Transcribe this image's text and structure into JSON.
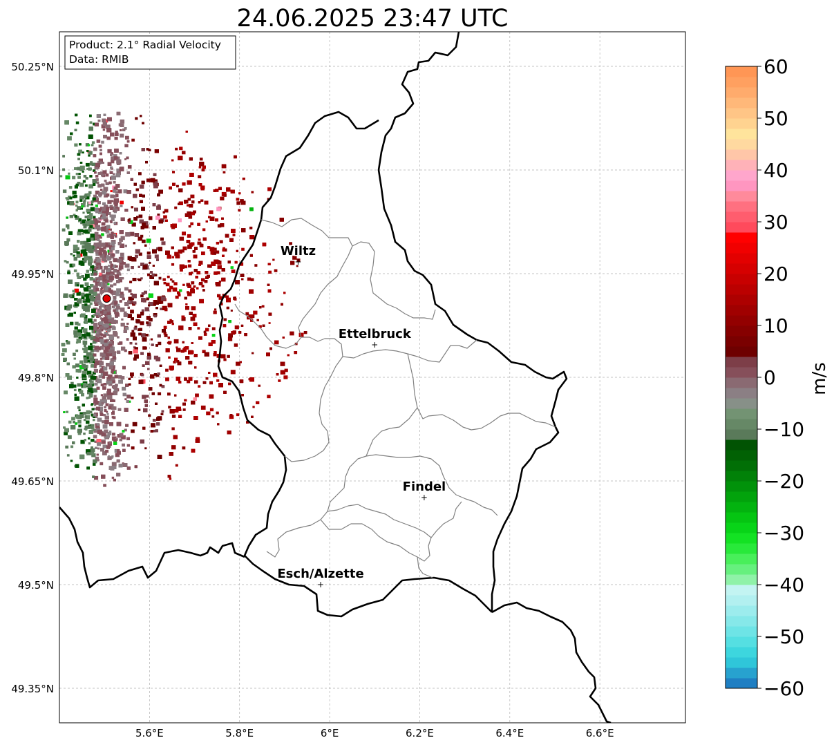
{
  "title": "24.06.2025 23:47 UTC",
  "info_box": {
    "product": "Product: 2.1° Radial Velocity",
    "data": "Data: RMIB"
  },
  "map": {
    "lat_ticks": [
      {
        "value": 50.25,
        "label": "50.25°N"
      },
      {
        "value": 50.1,
        "label": "50.1°N"
      },
      {
        "value": 49.95,
        "label": "49.95°N"
      },
      {
        "value": 49.8,
        "label": "49.8°N"
      },
      {
        "value": 49.65,
        "label": "49.65°N"
      },
      {
        "value": 49.5,
        "label": "49.5°N"
      },
      {
        "value": 49.35,
        "label": "49.35°N"
      }
    ],
    "lon_ticks": [
      {
        "value": 5.6,
        "label": "5.6°E"
      },
      {
        "value": 5.8,
        "label": "5.8°E"
      },
      {
        "value": 6.0,
        "label": "6°E"
      },
      {
        "value": 6.2,
        "label": "6.2°E"
      },
      {
        "value": 6.4,
        "label": "6.4°E"
      },
      {
        "value": 6.6,
        "label": "6.6°E"
      }
    ],
    "extent": {
      "lon": [
        5.4,
        6.79
      ],
      "lat": [
        49.3,
        50.3
      ]
    },
    "cities": [
      {
        "name": "Wiltz",
        "lon": 5.93,
        "lat": 49.967
      },
      {
        "name": "Ettelbruck",
        "lon": 6.1,
        "lat": 49.847
      },
      {
        "name": "Findel",
        "lon": 6.21,
        "lat": 49.626
      },
      {
        "name": "Esch/Alzette",
        "lon": 5.98,
        "lat": 49.5
      }
    ],
    "radar_site": {
      "lon": 5.505,
      "lat": 49.914
    }
  },
  "colorbar": {
    "label": "m/s",
    "min": -60,
    "max": 60,
    "ticks": [
      {
        "value": 60,
        "label": "60"
      },
      {
        "value": 50,
        "label": "50"
      },
      {
        "value": 40,
        "label": "40"
      },
      {
        "value": 30,
        "label": "30"
      },
      {
        "value": 20,
        "label": "20"
      },
      {
        "value": 10,
        "label": "10"
      },
      {
        "value": 0,
        "label": "0"
      },
      {
        "value": -10,
        "label": "−10"
      },
      {
        "value": -20,
        "label": "−20"
      },
      {
        "value": -30,
        "label": "−30"
      },
      {
        "value": -40,
        "label": "−40"
      },
      {
        "value": -50,
        "label": "−50"
      },
      {
        "value": -60,
        "label": "−60"
      }
    ],
    "colors": [
      "#1f7fc3",
      "#27a2cf",
      "#2fc6d9",
      "#3dd6de",
      "#55dfe2",
      "#6ee4e6",
      "#86e8e9",
      "#9ceced",
      "#b2f0f0",
      "#c3f4f2",
      "#8ff2a8",
      "#66f07e",
      "#48ef5a",
      "#28e93a",
      "#13e223",
      "#08d418",
      "#05c512",
      "#03b30f",
      "#02a30c",
      "#01920a",
      "#018108",
      "#016f06",
      "#016104",
      "#015303",
      "#5a7a5a",
      "#668866",
      "#739373",
      "#879088",
      "#8b7f84",
      "#8a6a72",
      "#864f5a",
      "#7d3e48",
      "#6e0000",
      "#7a0000",
      "#860000",
      "#930000",
      "#a00000",
      "#ad0000",
      "#bb0000",
      "#c80000",
      "#d60000",
      "#e30000",
      "#f10000",
      "#ff0000",
      "#ff4a5c",
      "#ff5d6e",
      "#ff7080",
      "#ff8a9b",
      "#ff96c0",
      "#ffa6cc",
      "#ffb2b8",
      "#ffc6a8",
      "#ffd9a0",
      "#ffe49c",
      "#ffd390",
      "#ffc586",
      "#ffb879",
      "#ffab6c",
      "#ffa060",
      "#ff9655"
    ]
  }
}
